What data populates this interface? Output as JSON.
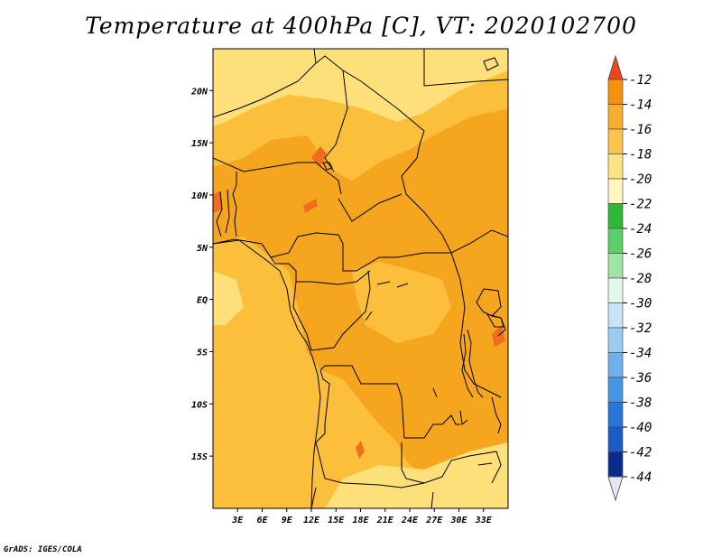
{
  "title": "Temperature at 400hPa [C], VT: 2020102700",
  "footer": "GrADS: IGES/COLA",
  "map": {
    "lon_range": [
      0,
      36
    ],
    "lat_range": [
      -20,
      24
    ],
    "lon_ticks": [
      "3E",
      "6E",
      "9E",
      "12E",
      "15E",
      "18E",
      "21E",
      "24E",
      "27E",
      "30E",
      "33E"
    ],
    "lat_ticks": [
      "20N",
      "15N",
      "10N",
      "5N",
      "EQ",
      "5S",
      "10S",
      "15S"
    ],
    "field_colors": {
      "warm_bg": "#f6a51f",
      "moderate": "#fbbf3c",
      "cool": "#fde07a",
      "hot": "#f06d1b"
    }
  },
  "colorbar": {
    "labels": [
      "-12",
      "-14",
      "-16",
      "-18",
      "-20",
      "-22",
      "-24",
      "-26",
      "-28",
      "-30",
      "-32",
      "-34",
      "-36",
      "-38",
      "-40",
      "-42",
      "-44"
    ],
    "colors": [
      "#ee5a11",
      "#f7900f",
      "#f8ad2f",
      "#fbc54d",
      "#fde383",
      "#fdf6bf",
      "#2fb737",
      "#5bd069",
      "#a0e4a2",
      "#e2f7e9",
      "#c8e2f8",
      "#9ccaf1",
      "#6fb0ec",
      "#4793e5",
      "#2777d9",
      "#1b5bc4",
      "#0a2c8a"
    ],
    "top_tip_color": "#f0441a",
    "bottom_tip_color": "#e6e6f6"
  }
}
